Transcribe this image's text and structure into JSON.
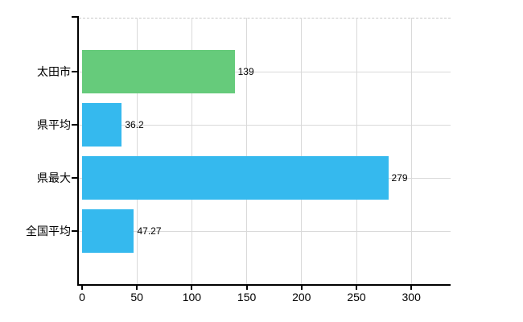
{
  "chart_data": {
    "type": "bar",
    "orientation": "horizontal",
    "title": "",
    "categories": [
      "太田市",
      "県平均",
      "県最大",
      "全国平均"
    ],
    "values": [
      139,
      36.2,
      279,
      47.27
    ],
    "value_labels": [
      "139",
      "36.2",
      "279",
      "47.27"
    ],
    "bar_colors": [
      "#66cb7b",
      "#35b9ee",
      "#35b9ee",
      "#35b9ee"
    ],
    "x_ticks": [
      0,
      50,
      100,
      150,
      200,
      250,
      300
    ],
    "x_tick_labels": [
      "0",
      "50",
      "100",
      "150",
      "200",
      "250",
      "300"
    ],
    "xlim": [
      0,
      335
    ],
    "grid": true,
    "legend_position": "none"
  },
  "colors": {
    "background": "#ffffff",
    "bar_green": "#66cb7b",
    "bar_blue": "#35b9ee",
    "axis": "#000000",
    "gridline": "#d9d9d9",
    "top_border": "#c9c9c9",
    "text": "#000000"
  }
}
